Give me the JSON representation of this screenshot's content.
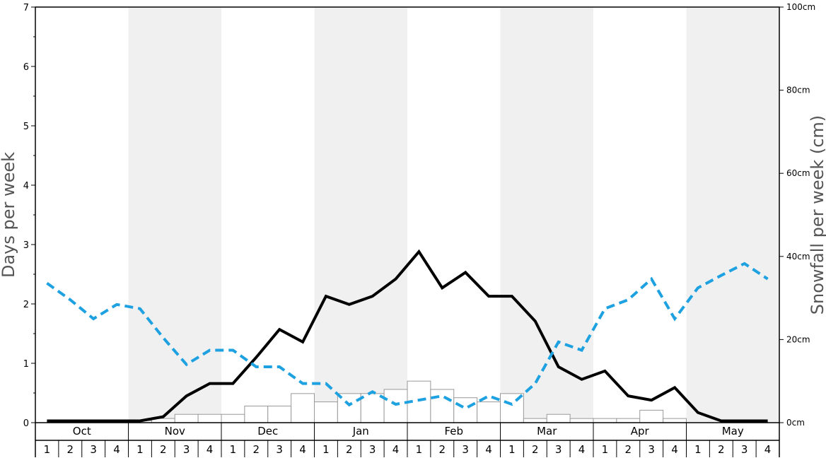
{
  "chart_data": {
    "type": "bar+line",
    "months": [
      "Oct",
      "Nov",
      "Dec",
      "Jan",
      "Feb",
      "Mar",
      "Apr",
      "May"
    ],
    "weeks": [
      "1",
      "2",
      "3",
      "4"
    ],
    "left_axis": {
      "label": "Days per week",
      "ylim": [
        0,
        7
      ],
      "ticks": [
        "0",
        "1",
        "2",
        "3",
        "4",
        "5",
        "6",
        "7"
      ]
    },
    "right_axis": {
      "label": "Snowfall per week (cm)",
      "ylim": [
        0,
        100
      ],
      "ticks": [
        "0cm",
        "20cm",
        "40cm",
        "60cm",
        "80cm",
        "100cm"
      ]
    },
    "shaded_months": [
      "Nov",
      "Jan",
      "Mar",
      "May"
    ],
    "series": [
      {
        "kind": "bar",
        "axis": "right",
        "units": "cm",
        "color": "#ffffff",
        "stroke": "#999999",
        "values": [
          0,
          0,
          0,
          0,
          0.5,
          1,
          2,
          2,
          2,
          4,
          4,
          7,
          5,
          7,
          7,
          8,
          10,
          8,
          6,
          5,
          7,
          1,
          2,
          1,
          1,
          1,
          3,
          1,
          0,
          0,
          0,
          0
        ]
      },
      {
        "kind": "line",
        "axis": "left",
        "style": "solid",
        "color": "#000000",
        "values": [
          0.03,
          0.03,
          0.03,
          0.03,
          0.03,
          0.1,
          0.45,
          0.66,
          0.66,
          1.1,
          1.57,
          1.36,
          2.13,
          1.99,
          2.13,
          2.42,
          2.88,
          2.27,
          2.53,
          2.13,
          2.13,
          1.71,
          0.94,
          0.73,
          0.87,
          0.45,
          0.38,
          0.59,
          0.17,
          0.03,
          0.03,
          0.03
        ]
      },
      {
        "kind": "line",
        "axis": "left",
        "style": "dashed",
        "color": "#1ea1e0",
        "values": [
          2.35,
          2.07,
          1.75,
          1.99,
          1.92,
          1.43,
          0.98,
          1.22,
          1.22,
          0.94,
          0.94,
          0.66,
          0.66,
          0.3,
          0.52,
          0.31,
          0.38,
          0.45,
          0.24,
          0.45,
          0.31,
          0.66,
          1.36,
          1.22,
          1.92,
          2.07,
          2.42,
          1.75,
          2.27,
          2.48,
          2.68,
          2.42
        ]
      }
    ]
  }
}
